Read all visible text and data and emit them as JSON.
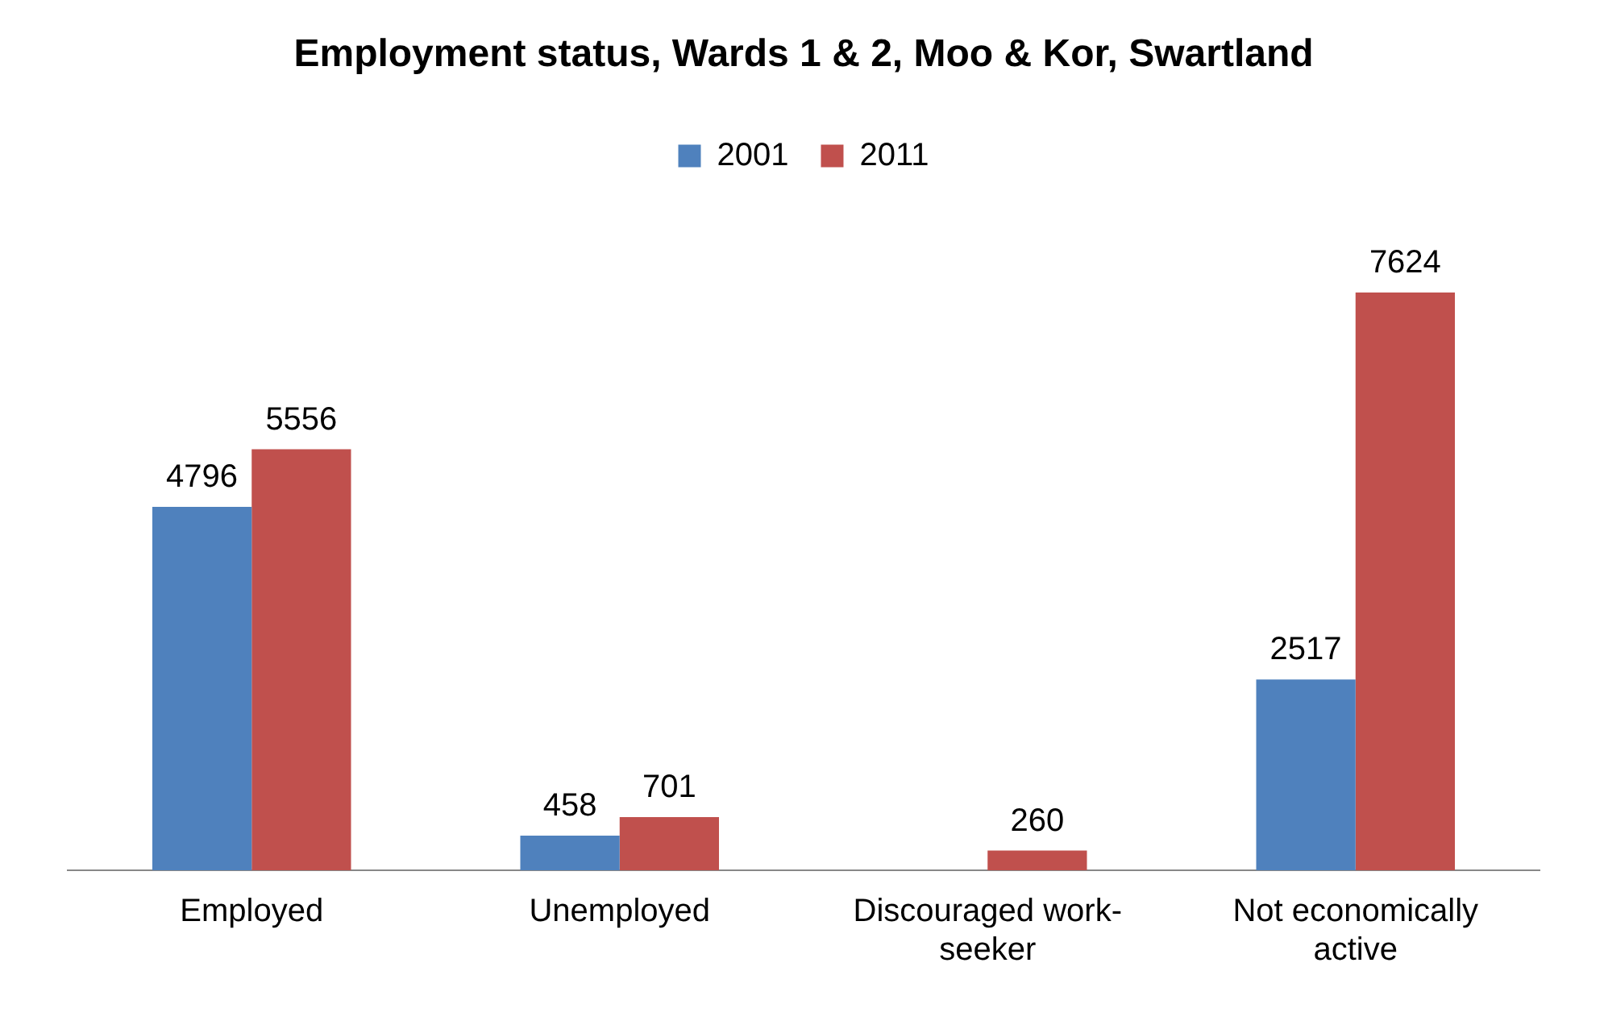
{
  "chart_data": {
    "type": "bar",
    "title": "Employment status, Wards 1 & 2, Moo & Kor, Swartland",
    "categories": [
      "Employed",
      "Unemployed",
      "Discouraged work-seeker",
      "Not economically active"
    ],
    "series": [
      {
        "name": "2001",
        "color": "#4f81bd",
        "values": [
          4796,
          458,
          null,
          2517
        ]
      },
      {
        "name": "2011",
        "color": "#c0504d",
        "values": [
          5556,
          701,
          260,
          7624
        ]
      }
    ],
    "data_labels": true,
    "legend": "top"
  }
}
